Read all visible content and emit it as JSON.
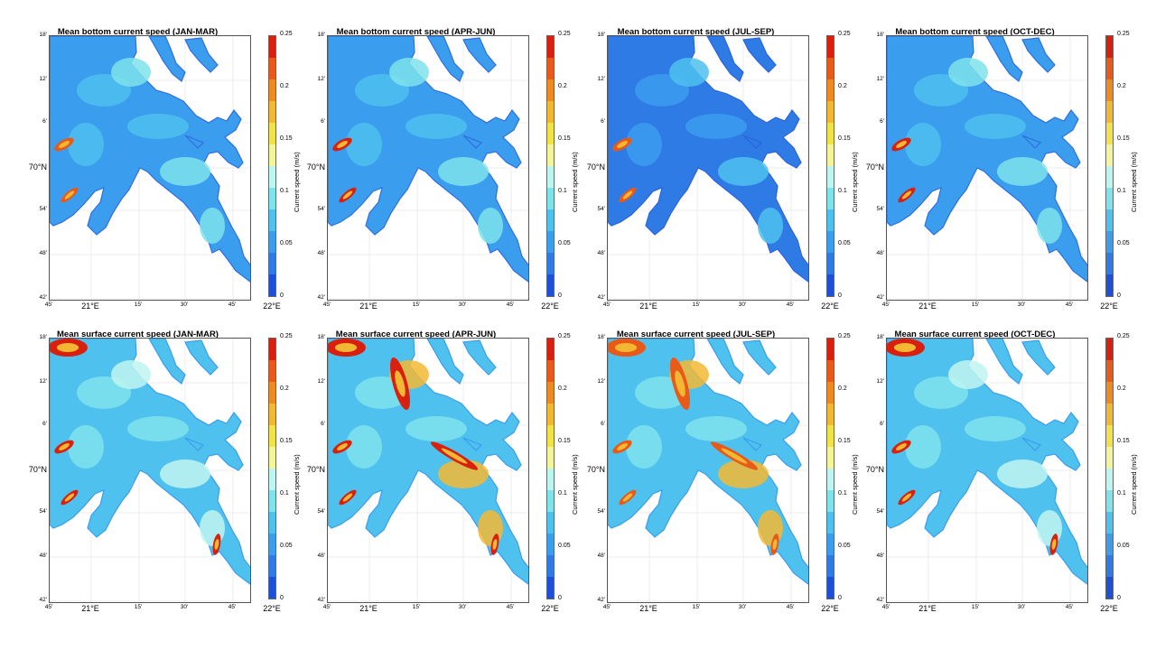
{
  "panels": [
    {
      "title": "Mean bottom current speed (JAN-MAR)",
      "depth": "bottom",
      "season": "JAN-MAR"
    },
    {
      "title": "Mean bottom current speed (APR-JUN)",
      "depth": "bottom",
      "season": "APR-JUN"
    },
    {
      "title": "Mean bottom current speed (JUL-SEP)",
      "depth": "bottom",
      "season": "JUL-SEP"
    },
    {
      "title": "Mean bottom current speed (OCT-DEC)",
      "depth": "bottom",
      "season": "OCT-DEC"
    },
    {
      "title": "Mean surface current speed (JAN-MAR)",
      "depth": "surface",
      "season": "JAN-MAR"
    },
    {
      "title": "Mean surface current speed (APR-JUN)",
      "depth": "surface",
      "season": "APR-JUN"
    },
    {
      "title": "Mean surface current speed (JUL-SEP)",
      "depth": "surface",
      "season": "JUL-SEP"
    },
    {
      "title": "Mean surface current speed (OCT-DEC)",
      "depth": "surface",
      "season": "OCT-DEC"
    }
  ],
  "axes": {
    "y_ticks": [
      "18'",
      "12'",
      "6'",
      "70°N",
      "54'",
      "48'",
      "42'"
    ],
    "x_ticks": [
      "45'",
      "21°E",
      "15'",
      "30'",
      "45'",
      "22°E"
    ]
  },
  "colorbar": {
    "label": "Current speed (m/s)",
    "ticks": [
      "0.25",
      "0.2",
      "0.15",
      "0.1",
      "0.05",
      "0"
    ],
    "range": [
      0,
      0.25
    ],
    "colors": [
      "#1d4fd8",
      "#2f7be6",
      "#3b9ded",
      "#4fc1ee",
      "#7fe3ec",
      "#bff5f1",
      "#f4f49a",
      "#f1e248",
      "#f3b833",
      "#ef8a22",
      "#e95a18",
      "#d9200f"
    ]
  },
  "colors": {
    "land": "#ffffff",
    "water_low": "#2f6fe0",
    "water_mid": "#4fb8ee",
    "water_high": "#d9200f"
  }
}
